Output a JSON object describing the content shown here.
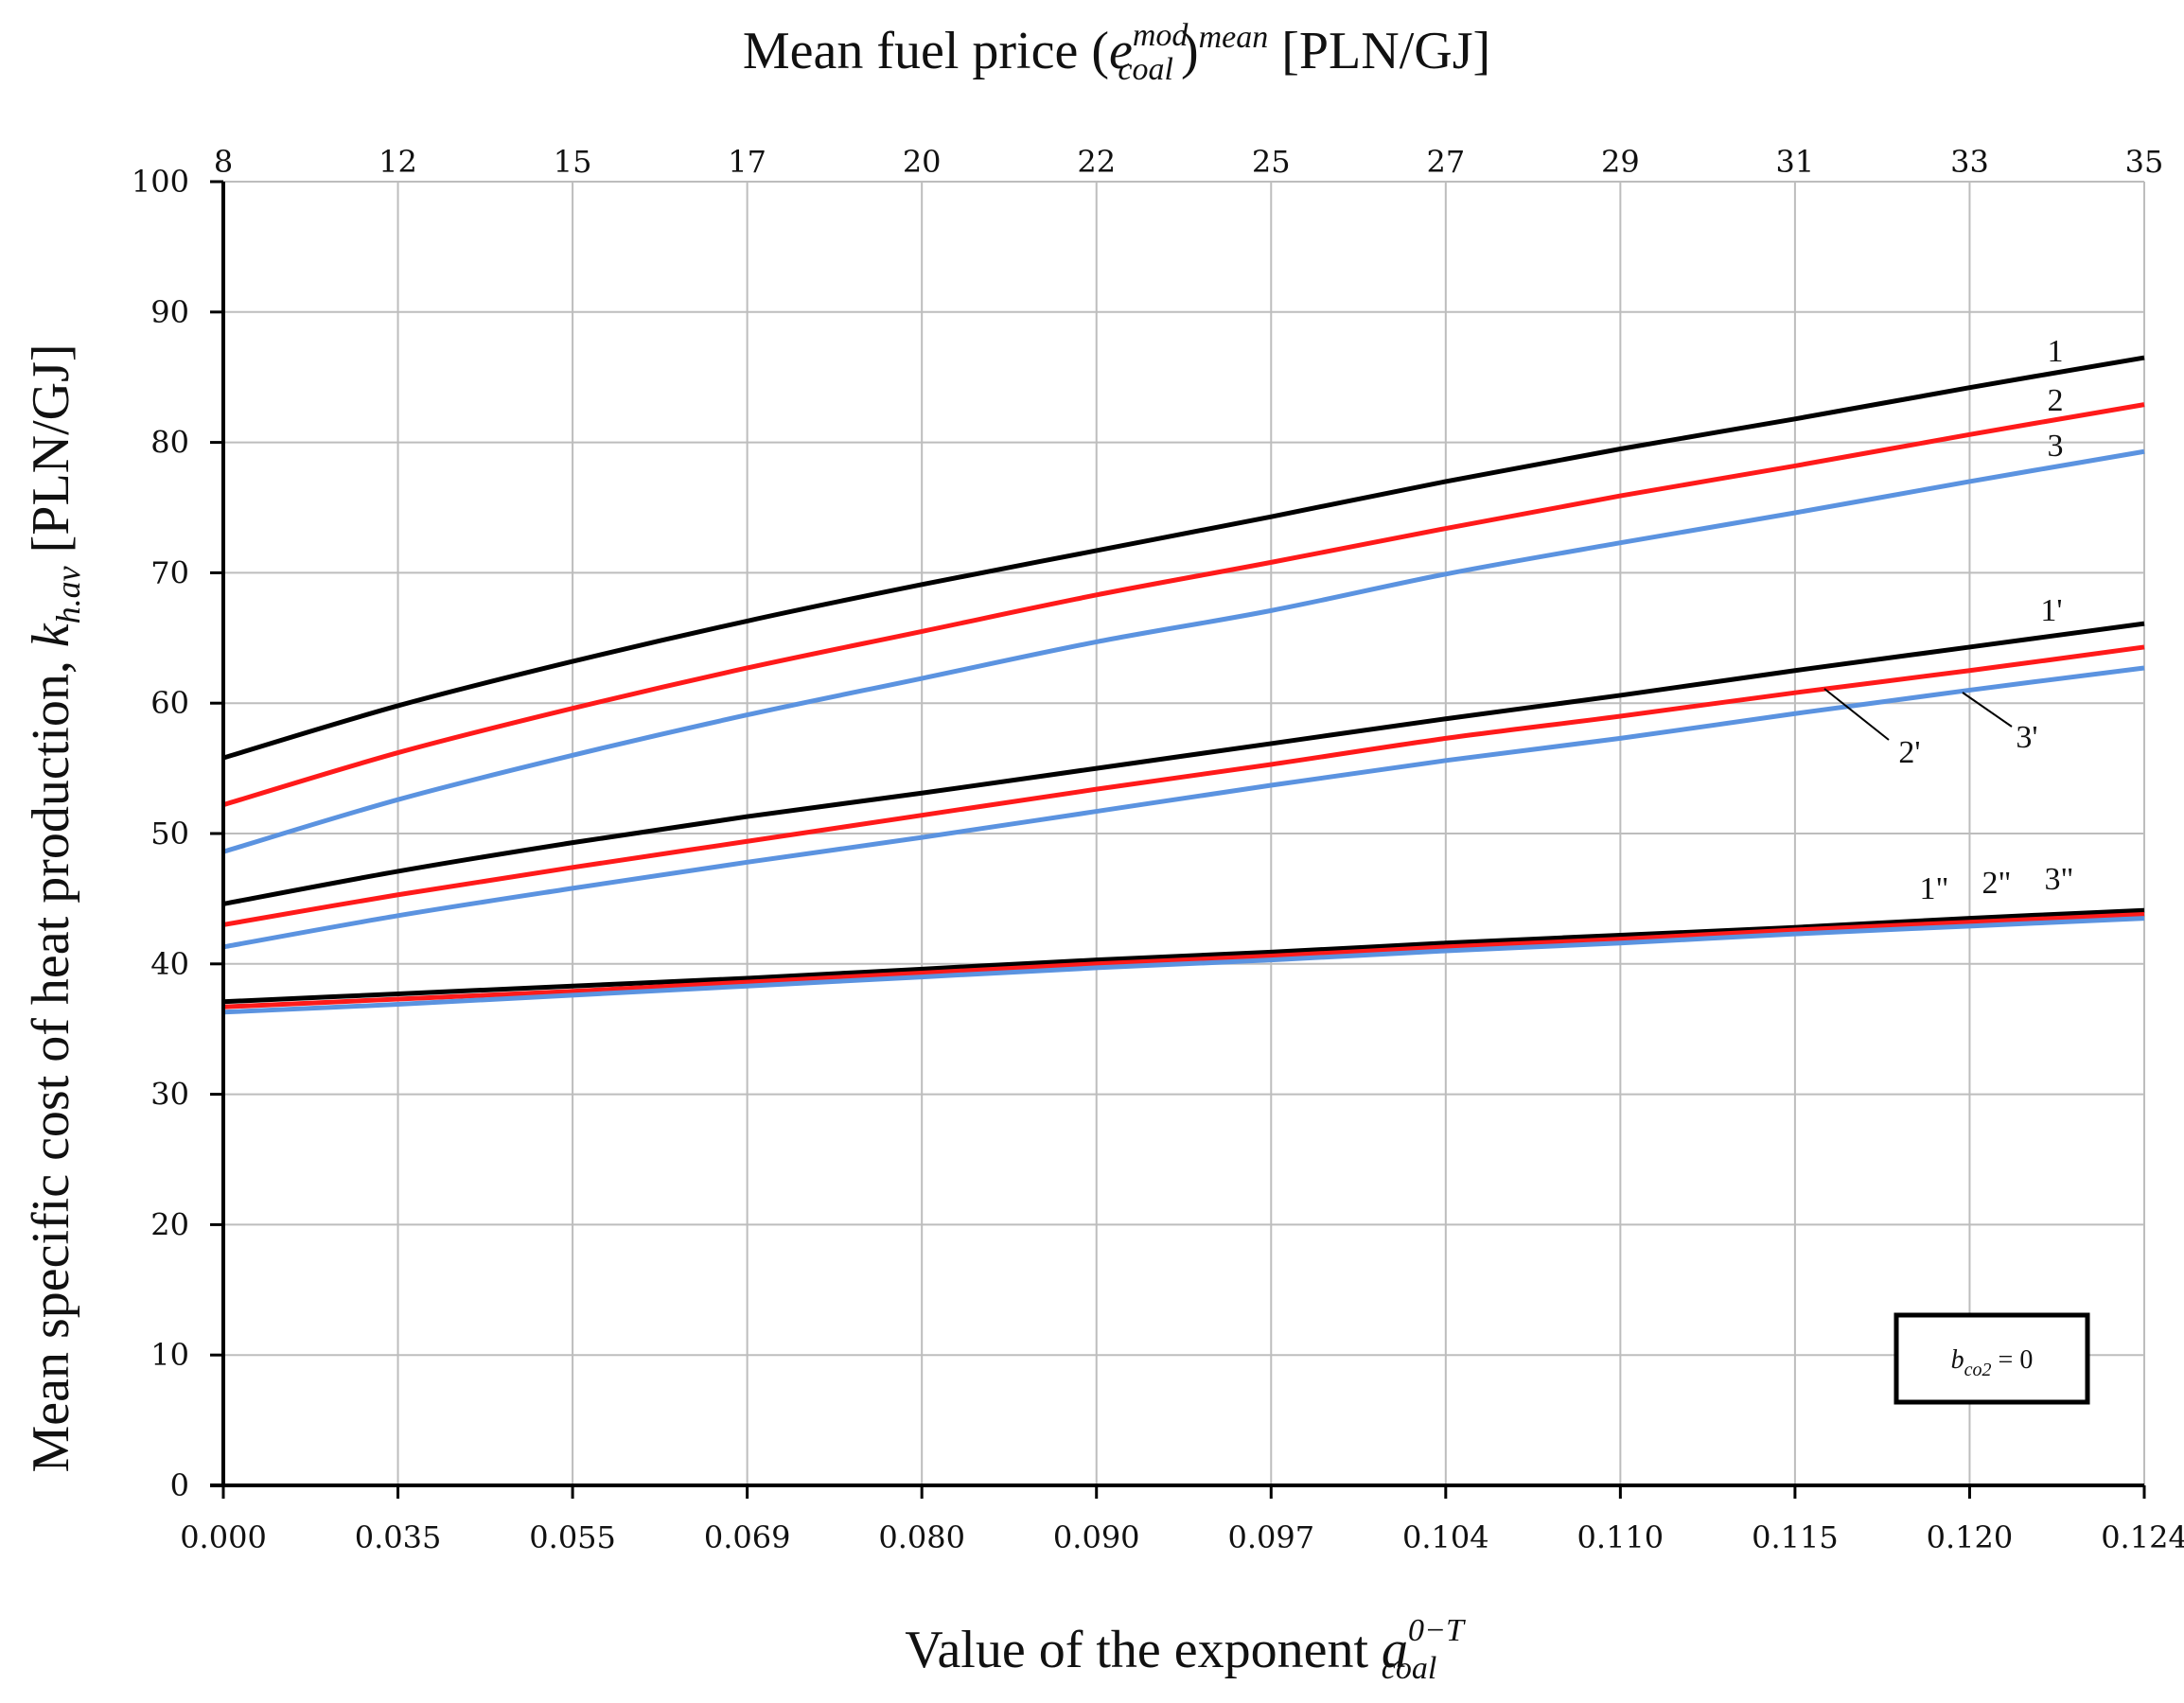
{
  "chart_data": {
    "type": "line",
    "title": "",
    "top_axis": {
      "label_main": "Mean fuel price (",
      "label_base": "e",
      "label_sup": "mod",
      "label_sub": "coal",
      "label_close": ")",
      "label_sup2": "mean",
      "label_unit": " [PLN/GJ]",
      "ticks": [
        "8",
        "12",
        "15",
        "17",
        "20",
        "22",
        "25",
        "27",
        "29",
        "31",
        "33",
        "35"
      ]
    },
    "x_axis": {
      "label_main": "Value of the exponent ",
      "label_base": "a",
      "label_sup": "0−T",
      "label_sub": "coal",
      "ticks": [
        "0.000",
        "0.035",
        "0.055",
        "0.069",
        "0.080",
        "0.090",
        "0.097",
        "0.104",
        "0.110",
        "0.115",
        "0.120",
        "0.124"
      ]
    },
    "y_axis": {
      "label_main": "Mean specific cost of heat production, ",
      "label_base": "k",
      "label_sub": "h.av",
      "label_unit": " [PLN/GJ]",
      "ticks": [
        "0",
        "10",
        "20",
        "30",
        "40",
        "50",
        "60",
        "70",
        "80",
        "90",
        "100"
      ],
      "ylim": [
        0,
        100
      ]
    },
    "grid": true,
    "legend": {
      "position": "bottom-right",
      "text_base": "b",
      "text_sub": "co2",
      "text_rest": " = 0"
    },
    "series": [
      {
        "name": "1",
        "color": "#000000",
        "values": [
          55.8,
          59.8,
          63.2,
          66.3,
          69.1,
          71.7,
          74.3,
          77.0,
          79.5,
          81.8,
          84.2,
          86.5
        ]
      },
      {
        "name": "2",
        "color": "#ff1a1a",
        "values": [
          52.2,
          56.2,
          59.6,
          62.7,
          65.5,
          68.3,
          70.8,
          73.4,
          75.9,
          78.2,
          80.6,
          82.9
        ]
      },
      {
        "name": "3",
        "color": "#5b93e0",
        "values": [
          48.6,
          52.6,
          56.0,
          59.1,
          61.9,
          64.7,
          67.1,
          69.9,
          72.3,
          74.6,
          77.0,
          79.3
        ]
      },
      {
        "name": "1'",
        "color": "#000000",
        "values": [
          44.6,
          47.1,
          49.3,
          51.3,
          53.1,
          55.0,
          56.9,
          58.8,
          60.6,
          62.5,
          64.3,
          66.1
        ]
      },
      {
        "name": "2'",
        "color": "#ff1a1a",
        "values": [
          43.0,
          45.3,
          47.4,
          49.4,
          51.4,
          53.4,
          55.3,
          57.3,
          59.0,
          60.8,
          62.5,
          64.3
        ]
      },
      {
        "name": "3'",
        "color": "#5b93e0",
        "values": [
          41.3,
          43.7,
          45.8,
          47.8,
          49.7,
          51.7,
          53.7,
          55.6,
          57.3,
          59.2,
          61.0,
          62.7
        ]
      },
      {
        "name": "1\"",
        "color": "#000000",
        "values": [
          37.1,
          37.7,
          38.3,
          38.9,
          39.6,
          40.3,
          40.9,
          41.6,
          42.2,
          42.8,
          43.5,
          44.1
        ]
      },
      {
        "name": "2\"",
        "color": "#ff1a1a",
        "values": [
          36.7,
          37.3,
          37.9,
          38.6,
          39.3,
          40.0,
          40.6,
          41.3,
          41.9,
          42.6,
          43.2,
          43.8
        ]
      },
      {
        "name": "3\"",
        "color": "#5b93e0",
        "values": [
          36.3,
          36.9,
          37.6,
          38.3,
          39.0,
          39.7,
          40.3,
          41.0,
          41.6,
          42.3,
          42.9,
          43.5
        ]
      }
    ],
    "annotations": [
      "1",
      "2",
      "3",
      "1'",
      "2'",
      "3'",
      "1\"",
      "2\"",
      "3\""
    ]
  }
}
